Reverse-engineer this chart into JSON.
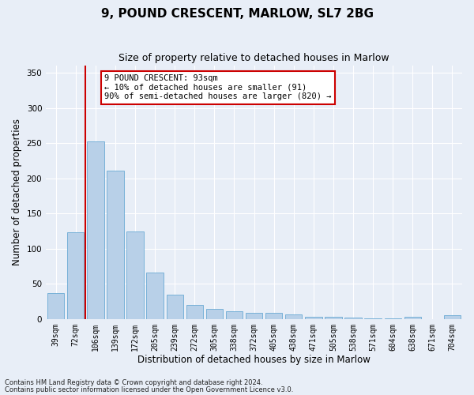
{
  "title": "9, POUND CRESCENT, MARLOW, SL7 2BG",
  "subtitle": "Size of property relative to detached houses in Marlow",
  "xlabel": "Distribution of detached houses by size in Marlow",
  "ylabel": "Number of detached properties",
  "categories": [
    "39sqm",
    "72sqm",
    "106sqm",
    "139sqm",
    "172sqm",
    "205sqm",
    "239sqm",
    "272sqm",
    "305sqm",
    "338sqm",
    "372sqm",
    "405sqm",
    "438sqm",
    "471sqm",
    "505sqm",
    "538sqm",
    "571sqm",
    "604sqm",
    "638sqm",
    "671sqm",
    "704sqm"
  ],
  "values": [
    37,
    123,
    252,
    211,
    124,
    66,
    35,
    20,
    14,
    11,
    9,
    9,
    6,
    3,
    3,
    2,
    1,
    1,
    3,
    0,
    5
  ],
  "bar_color": "#b8d0e8",
  "bar_edge_color": "#6aaad4",
  "background_color": "#e8eef7",
  "vline_x": 1.5,
  "vline_color": "#cc0000",
  "ylim": [
    0,
    360
  ],
  "yticks": [
    0,
    50,
    100,
    150,
    200,
    250,
    300,
    350
  ],
  "annotation_text": "9 POUND CRESCENT: 93sqm\n← 10% of detached houses are smaller (91)\n90% of semi-detached houses are larger (820) →",
  "annotation_box_color": "#ffffff",
  "annotation_box_edge": "#cc0000",
  "footer1": "Contains HM Land Registry data © Crown copyright and database right 2024.",
  "footer2": "Contains public sector information licensed under the Open Government Licence v3.0.",
  "title_fontsize": 11,
  "subtitle_fontsize": 9,
  "tick_fontsize": 7,
  "ylabel_fontsize": 8.5,
  "xlabel_fontsize": 8.5,
  "annot_fontsize": 7.5
}
